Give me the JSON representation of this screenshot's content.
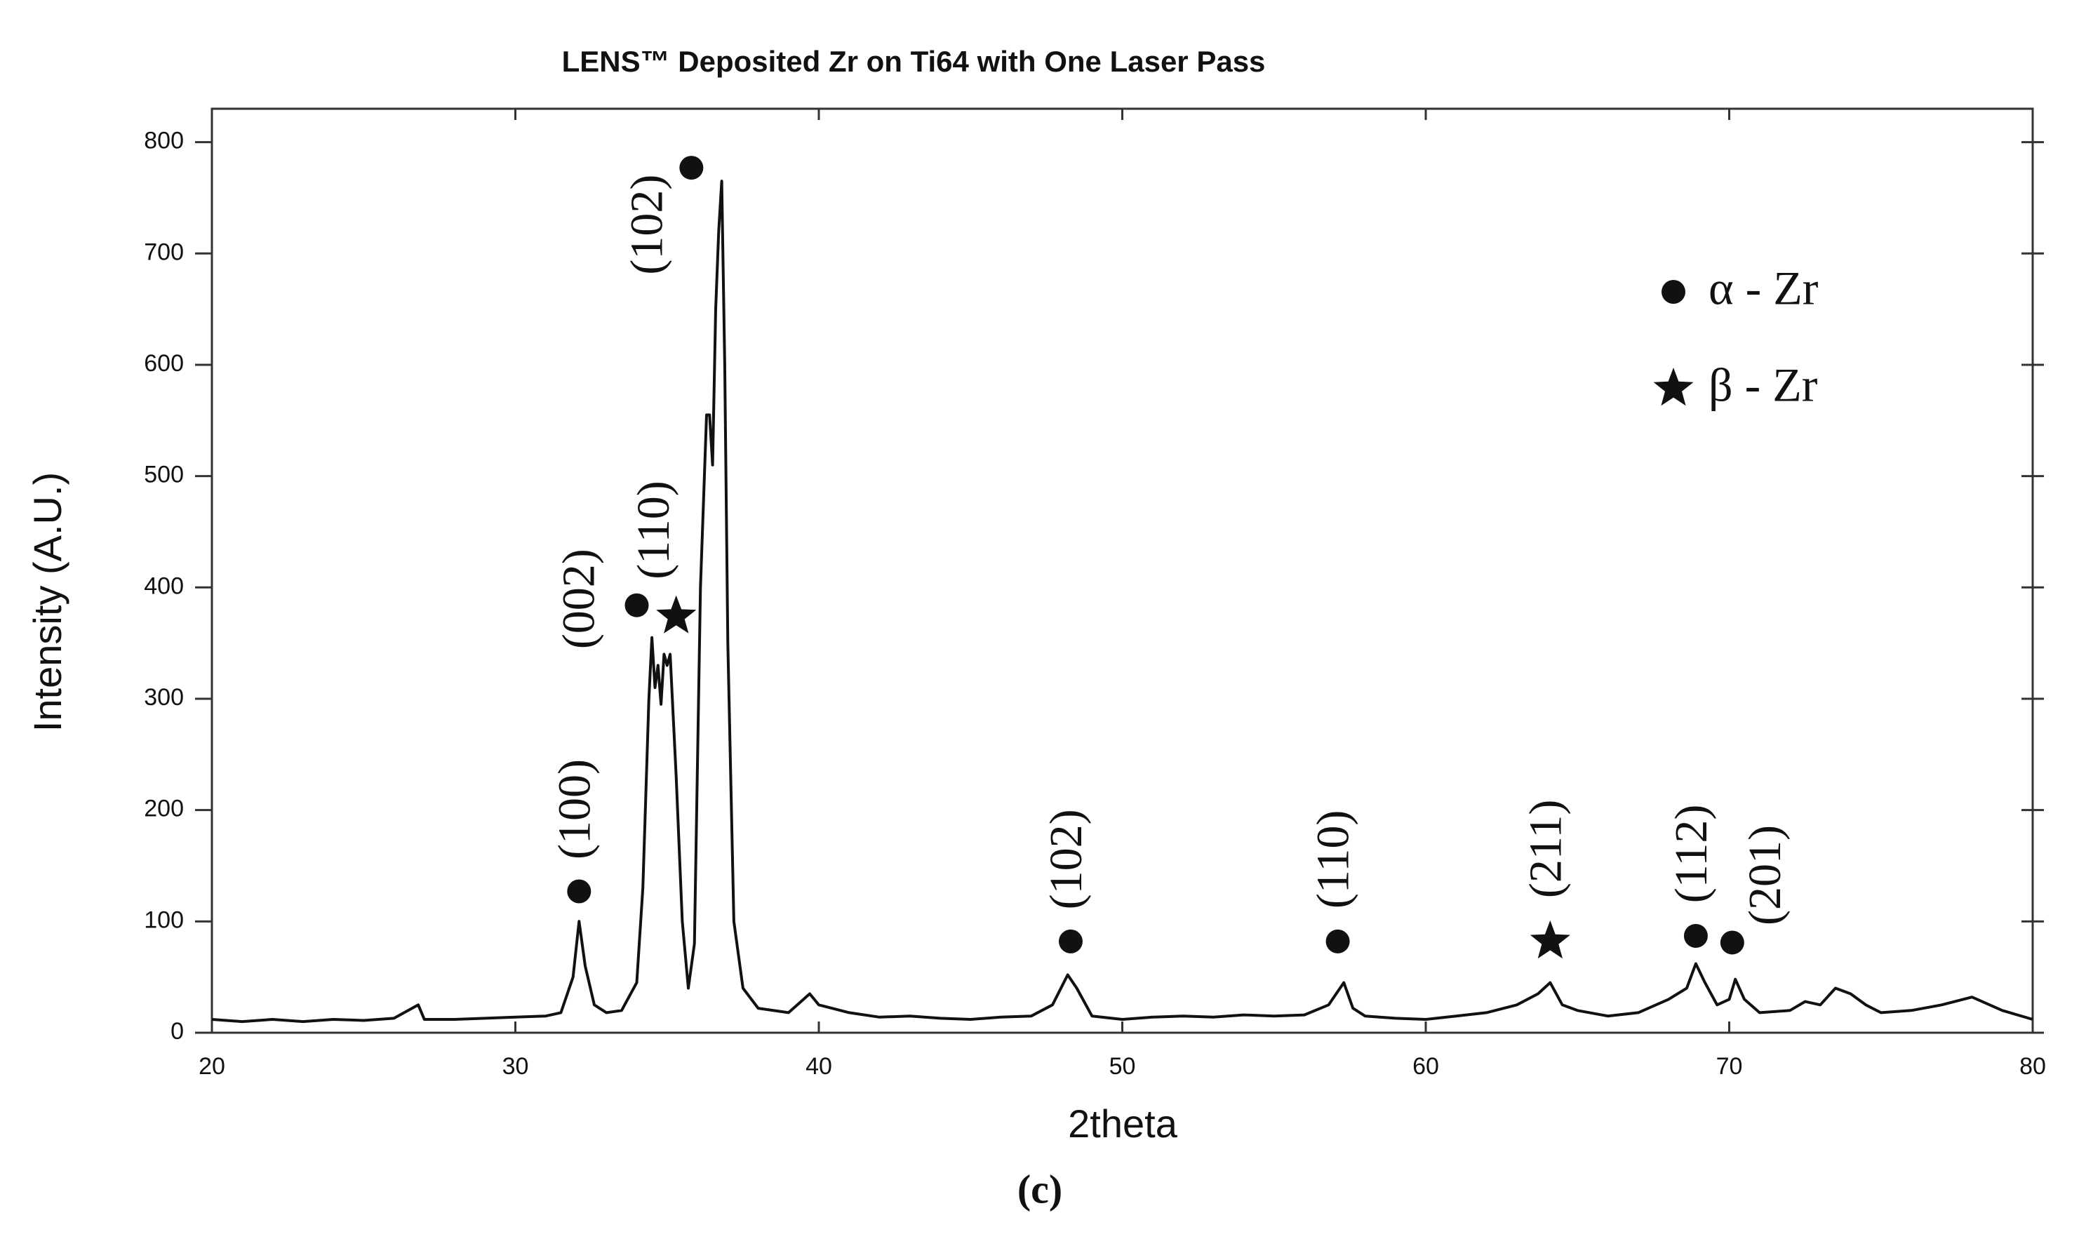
{
  "chart_data": {
    "type": "line",
    "title": "LENS™ Deposited Zr on Ti64 with One Laser Pass",
    "subtitle": "(c)",
    "x_label": "2theta",
    "y_label": "Intensity (A.U.)",
    "xlim": [
      20,
      80
    ],
    "ylim": [
      0,
      830
    ],
    "xticks": [
      20,
      30,
      40,
      50,
      60,
      70,
      80
    ],
    "yticks": [
      0,
      100,
      200,
      300,
      400,
      500,
      600,
      700,
      800
    ],
    "grid": false,
    "color": "#111111",
    "x": [
      20,
      21,
      22,
      23,
      24,
      25,
      26,
      26.8,
      27,
      28,
      29,
      30,
      31,
      31.5,
      31.9,
      32.1,
      32.3,
      32.6,
      33,
      33.5,
      34,
      34.2,
      34.4,
      34.5,
      34.6,
      34.7,
      34.8,
      34.9,
      35.0,
      35.1,
      35.3,
      35.5,
      35.7,
      35.9,
      36.1,
      36.3,
      36.4,
      36.5,
      36.6,
      36.7,
      36.8,
      36.9,
      37.0,
      37.2,
      37.5,
      38,
      39,
      39.7,
      40,
      41,
      42,
      43,
      44,
      45,
      46,
      47,
      47.7,
      48.2,
      48.5,
      49,
      50,
      51,
      52,
      53,
      54,
      55,
      56,
      56.8,
      57.3,
      57.6,
      58,
      59,
      60,
      61,
      62,
      63,
      63.7,
      64.1,
      64.5,
      65,
      66,
      67,
      68,
      68.6,
      68.9,
      69.2,
      69.6,
      70,
      70.2,
      70.5,
      71,
      72,
      72.5,
      73,
      73.5,
      74,
      74.5,
      75,
      76,
      77,
      78,
      79,
      80
    ],
    "values": [
      12,
      10,
      12,
      10,
      12,
      11,
      13,
      25,
      12,
      12,
      13,
      14,
      15,
      18,
      50,
      100,
      60,
      25,
      18,
      20,
      45,
      130,
      300,
      355,
      310,
      330,
      295,
      340,
      330,
      340,
      230,
      100,
      40,
      80,
      400,
      555,
      555,
      510,
      650,
      720,
      765,
      600,
      350,
      100,
      40,
      22,
      18,
      35,
      25,
      18,
      14,
      15,
      13,
      12,
      14,
      15,
      25,
      52,
      40,
      15,
      12,
      14,
      15,
      14,
      16,
      15,
      16,
      25,
      45,
      22,
      15,
      13,
      12,
      15,
      18,
      25,
      35,
      45,
      25,
      20,
      15,
      18,
      30,
      40,
      62,
      45,
      25,
      30,
      48,
      30,
      18,
      20,
      28,
      25,
      40,
      35,
      25,
      18,
      20,
      25,
      32,
      20,
      12
    ],
    "annotations": [
      {
        "text": "(100)",
        "marker": "circle",
        "x": 32.1,
        "y": 127
      },
      {
        "text": "(002)",
        "marker": "circle",
        "x": 34.0,
        "y": 384
      },
      {
        "text": "(110)",
        "marker": "star",
        "x": 35.3,
        "y": 374
      },
      {
        "text": "(102)",
        "marker": "circle",
        "x": 35.8,
        "y": 777
      },
      {
        "text": "(102)",
        "marker": "circle",
        "x": 48.3,
        "y": 82
      },
      {
        "text": "(110)",
        "marker": "circle",
        "x": 57.1,
        "y": 82
      },
      {
        "text": "(211)",
        "marker": "star",
        "x": 64.1,
        "y": 82
      },
      {
        "text": "(112)",
        "marker": "circle",
        "x": 68.9,
        "y": 87
      },
      {
        "text": "(201)",
        "marker": "circle",
        "x": 70.1,
        "y": 81
      }
    ],
    "legend_position": "upper right",
    "legend": [
      {
        "label": "α - Zr",
        "marker": "circle"
      },
      {
        "label": "β - Zr",
        "marker": "star"
      }
    ]
  }
}
